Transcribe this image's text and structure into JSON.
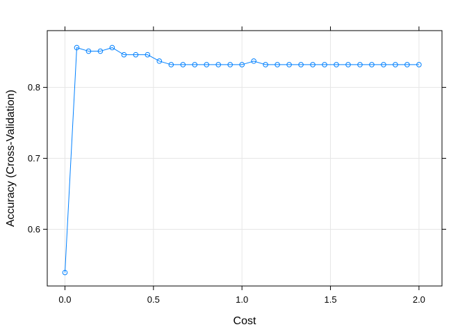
{
  "chart_data": {
    "type": "line",
    "title": "",
    "xlabel": "Cost",
    "ylabel": "Accuracy (Cross-Validation)",
    "xlim": [
      -0.1,
      2.13
    ],
    "ylim": [
      0.52,
      0.88
    ],
    "x_ticks": [
      0.0,
      0.5,
      1.0,
      1.5,
      2.0
    ],
    "x_tick_labels": [
      "0.0",
      "0.5",
      "1.0",
      "1.5",
      "2.0"
    ],
    "y_ticks": [
      0.6,
      0.7,
      0.8
    ],
    "y_tick_labels": [
      "0.6",
      "0.7",
      "0.8"
    ],
    "grid": true,
    "legend": "none",
    "series": [
      {
        "color": "#0080ff",
        "marker": "open-circle",
        "x": [
          0.0,
          0.0667,
          0.1333,
          0.2,
          0.2667,
          0.3333,
          0.4,
          0.4667,
          0.5333,
          0.6,
          0.6667,
          0.7333,
          0.8,
          0.8667,
          0.9333,
          1.0,
          1.0667,
          1.1333,
          1.2,
          1.2667,
          1.3333,
          1.4,
          1.4667,
          1.5333,
          1.6,
          1.6667,
          1.7333,
          1.8,
          1.8667,
          1.9333,
          2.0
        ],
        "values": [
          0.539,
          0.856,
          0.851,
          0.851,
          0.856,
          0.846,
          0.846,
          0.846,
          0.837,
          0.832,
          0.832,
          0.832,
          0.832,
          0.832,
          0.832,
          0.832,
          0.837,
          0.832,
          0.832,
          0.832,
          0.832,
          0.832,
          0.832,
          0.832,
          0.832,
          0.832,
          0.832,
          0.832,
          0.832,
          0.832,
          0.832
        ]
      }
    ]
  }
}
